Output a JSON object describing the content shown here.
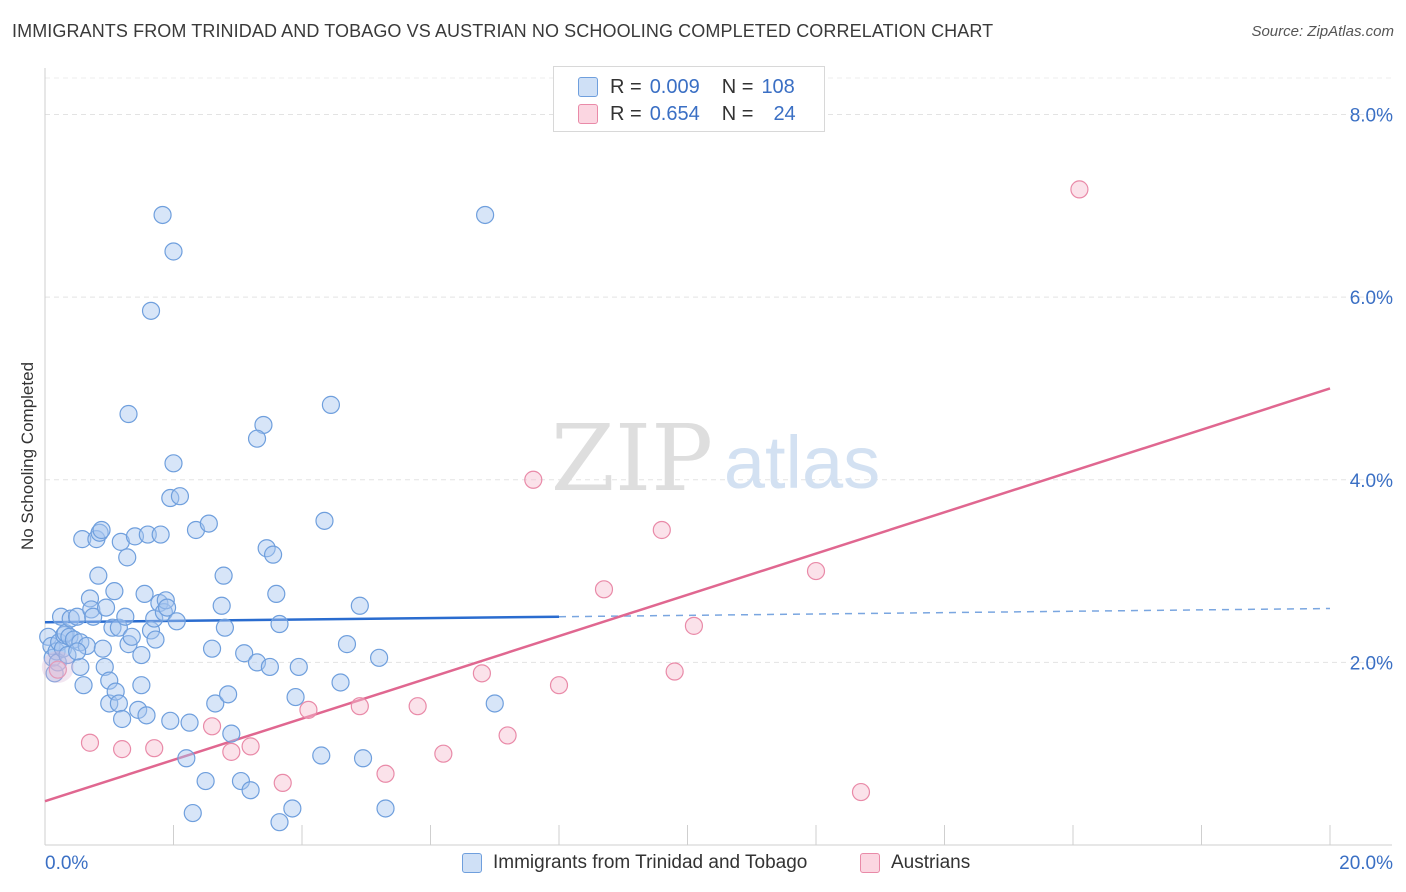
{
  "title": "IMMIGRANTS FROM TRINIDAD AND TOBAGO VS AUSTRIAN NO SCHOOLING COMPLETED CORRELATION CHART",
  "source": "Source: ZipAtlas.com",
  "watermark": {
    "zip": "ZIP",
    "atlas": "atlas"
  },
  "legend": [
    {
      "r_label": "R =",
      "r_value": "0.009",
      "n_label": "N =",
      "n_value": "108",
      "color": "#a7c6ef",
      "border": "#6f9fdd"
    },
    {
      "r_label": "R =",
      "r_value": "0.654",
      "n_label": "N =",
      "n_value": "24",
      "color": "#f7bfd0",
      "border": "#e98aa8"
    }
  ],
  "chart_data": {
    "type": "scatter",
    "title": "IMMIGRANTS FROM TRINIDAD AND TOBAGO VS AUSTRIAN NO SCHOOLING COMPLETED CORRELATION CHART",
    "xlabel": "",
    "ylabel": "No Schooling Completed",
    "xlim": [
      0,
      20
    ],
    "ylim": [
      0,
      8.4
    ],
    "x_tick_labels": [
      "0.0%",
      "20.0%"
    ],
    "y_ticks": [
      2,
      4,
      6,
      8
    ],
    "y_tick_labels": [
      "2.0%",
      "4.0%",
      "6.0%",
      "8.0%"
    ],
    "grid": true,
    "legend_position": "top-center",
    "series": [
      {
        "name": "Immigrants from Trinidad and Tobago",
        "color": "#6f9fdd",
        "fill": "#a7c6ef",
        "trend": {
          "x1": 0,
          "y1": 2.44,
          "x2": 8.0,
          "y2": 2.5,
          "dashed_to_x": 20.0,
          "dashed_to_y": 2.59,
          "color": "#2a6ccf"
        },
        "points": [
          [
            0.05,
            2.28
          ],
          [
            0.1,
            2.18
          ],
          [
            0.12,
            2.05
          ],
          [
            0.15,
            1.88
          ],
          [
            0.18,
            2.12
          ],
          [
            0.2,
            2.0
          ],
          [
            0.22,
            2.22
          ],
          [
            0.25,
            2.5
          ],
          [
            0.28,
            2.15
          ],
          [
            0.3,
            2.3
          ],
          [
            0.32,
            2.32
          ],
          [
            0.35,
            2.08
          ],
          [
            0.38,
            2.28
          ],
          [
            0.4,
            2.48
          ],
          [
            0.45,
            2.25
          ],
          [
            0.5,
            2.5
          ],
          [
            0.55,
            1.95
          ],
          [
            0.55,
            2.22
          ],
          [
            0.58,
            3.35
          ],
          [
            0.6,
            1.75
          ],
          [
            0.65,
            2.18
          ],
          [
            0.7,
            2.7
          ],
          [
            0.72,
            2.58
          ],
          [
            0.75,
            2.5
          ],
          [
            0.8,
            3.35
          ],
          [
            0.83,
            2.95
          ],
          [
            0.85,
            3.42
          ],
          [
            0.88,
            3.45
          ],
          [
            0.9,
            2.15
          ],
          [
            0.93,
            1.95
          ],
          [
            0.95,
            2.6
          ],
          [
            1.0,
            1.8
          ],
          [
            1.0,
            1.55
          ],
          [
            1.05,
            2.38
          ],
          [
            1.08,
            2.78
          ],
          [
            1.1,
            1.68
          ],
          [
            1.15,
            1.55
          ],
          [
            1.15,
            2.38
          ],
          [
            1.18,
            3.32
          ],
          [
            1.2,
            1.38
          ],
          [
            1.25,
            2.5
          ],
          [
            1.28,
            3.15
          ],
          [
            1.3,
            2.2
          ],
          [
            1.35,
            2.28
          ],
          [
            1.4,
            3.38
          ],
          [
            1.45,
            1.48
          ],
          [
            1.5,
            1.75
          ],
          [
            1.5,
            2.08
          ],
          [
            1.55,
            2.75
          ],
          [
            1.58,
            1.42
          ],
          [
            1.6,
            3.4
          ],
          [
            1.65,
            2.35
          ],
          [
            1.7,
            2.48
          ],
          [
            1.72,
            2.25
          ],
          [
            1.78,
            2.65
          ],
          [
            1.8,
            3.4
          ],
          [
            1.85,
            2.55
          ],
          [
            1.88,
            2.68
          ],
          [
            1.9,
            2.6
          ],
          [
            1.95,
            3.8
          ],
          [
            1.95,
            1.36
          ],
          [
            2.0,
            4.18
          ],
          [
            2.05,
            2.45
          ],
          [
            2.1,
            3.82
          ],
          [
            2.2,
            0.95
          ],
          [
            2.25,
            1.34
          ],
          [
            2.3,
            0.35
          ],
          [
            2.35,
            3.45
          ],
          [
            2.5,
            0.7
          ],
          [
            2.55,
            3.52
          ],
          [
            2.6,
            2.15
          ],
          [
            2.65,
            1.55
          ],
          [
            2.75,
            2.62
          ],
          [
            2.78,
            2.95
          ],
          [
            2.8,
            2.38
          ],
          [
            2.85,
            1.65
          ],
          [
            2.9,
            1.22
          ],
          [
            3.05,
            0.7
          ],
          [
            3.1,
            2.1
          ],
          [
            3.2,
            0.6
          ],
          [
            3.3,
            2.0
          ],
          [
            3.4,
            4.6
          ],
          [
            3.45,
            3.25
          ],
          [
            3.5,
            1.95
          ],
          [
            3.55,
            3.18
          ],
          [
            3.6,
            2.75
          ],
          [
            3.65,
            2.42
          ],
          [
            3.65,
            0.25
          ],
          [
            3.85,
            0.4
          ],
          [
            3.9,
            1.62
          ],
          [
            3.95,
            1.95
          ],
          [
            4.3,
            0.98
          ],
          [
            4.35,
            3.55
          ],
          [
            4.45,
            4.82
          ],
          [
            4.6,
            1.78
          ],
          [
            4.7,
            2.2
          ],
          [
            4.9,
            2.62
          ],
          [
            4.95,
            0.95
          ],
          [
            5.2,
            2.05
          ],
          [
            5.3,
            0.4
          ],
          [
            7.0,
            1.55
          ],
          [
            1.3,
            4.72
          ],
          [
            2.0,
            6.5
          ],
          [
            3.3,
            4.45
          ],
          [
            1.65,
            5.85
          ],
          [
            1.83,
            6.9
          ],
          [
            6.85,
            6.9
          ],
          [
            0.5,
            2.12
          ]
        ]
      },
      {
        "name": "Austrians",
        "color": "#e98aa8",
        "fill": "#f7bfd0",
        "trend": {
          "x1": 0,
          "y1": 0.48,
          "x2": 20.0,
          "y2": 5.0,
          "color": "#e06790"
        },
        "points": [
          [
            0.2,
            1.92
          ],
          [
            0.7,
            1.12
          ],
          [
            1.2,
            1.05
          ],
          [
            1.7,
            1.06
          ],
          [
            2.6,
            1.3
          ],
          [
            2.9,
            1.02
          ],
          [
            3.2,
            1.08
          ],
          [
            3.7,
            0.68
          ],
          [
            4.1,
            1.48
          ],
          [
            4.9,
            1.52
          ],
          [
            5.3,
            0.78
          ],
          [
            5.8,
            1.52
          ],
          [
            6.2,
            1.0
          ],
          [
            6.8,
            1.88
          ],
          [
            7.2,
            1.2
          ],
          [
            7.6,
            4.0
          ],
          [
            8.0,
            1.75
          ],
          [
            8.7,
            2.8
          ],
          [
            9.6,
            3.45
          ],
          [
            9.8,
            1.9
          ],
          [
            10.1,
            2.4
          ],
          [
            12.0,
            3.0
          ],
          [
            12.7,
            0.58
          ],
          [
            16.1,
            7.18
          ]
        ]
      }
    ]
  }
}
